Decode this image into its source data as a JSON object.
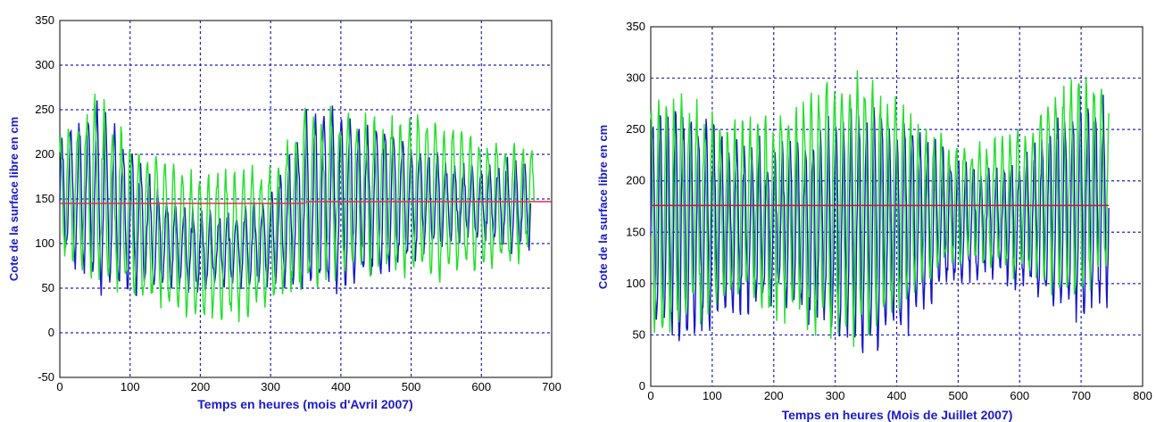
{
  "chart_data": [
    {
      "type": "line",
      "title": "",
      "xlabel": "Temps en heures (mois d'Avril 2007)",
      "ylabel": "Cote de la surface libre en cm",
      "xlim": [
        0,
        700
      ],
      "ylim": [
        -50,
        350
      ],
      "xticks": [
        0,
        100,
        200,
        300,
        400,
        500,
        600,
        700
      ],
      "yticks": [
        -50,
        0,
        50,
        100,
        150,
        200,
        250,
        300,
        350
      ],
      "grid": true,
      "legend": "none",
      "colors": {
        "series1": "#1515c8",
        "series2": "#22e02a",
        "mean": "#e0304a",
        "grid": "#2020c0"
      },
      "series": [
        {
          "x_range": [
            0,
            670
          ],
          "envelope": [
            [
              0,
              95,
              210
            ],
            [
              50,
              60,
              250
            ],
            [
              100,
              45,
              205
            ],
            [
              150,
              45,
              160
            ],
            [
              200,
              35,
              145
            ],
            [
              250,
              40,
              145
            ],
            [
              300,
              50,
              160
            ],
            [
              350,
              50,
              240
            ],
            [
              400,
              55,
              245
            ],
            [
              450,
              65,
              230
            ],
            [
              500,
              75,
              225
            ],
            [
              550,
              85,
              205
            ],
            [
              600,
              90,
              200
            ],
            [
              650,
              85,
              200
            ],
            [
              670,
              95,
              210
            ]
          ]
        },
        {
          "x_range": [
            0,
            675
          ],
          "envelope": [
            [
              0,
              80,
              230
            ],
            [
              50,
              20,
              300
            ],
            [
              100,
              30,
              225
            ],
            [
              150,
              25,
              195
            ],
            [
              200,
              15,
              175
            ],
            [
              250,
              20,
              175
            ],
            [
              300,
              30,
              190
            ],
            [
              350,
              30,
              270
            ],
            [
              400,
              40,
              275
            ],
            [
              450,
              55,
              250
            ],
            [
              500,
              60,
              245
            ],
            [
              550,
              70,
              225
            ],
            [
              600,
              75,
              215
            ],
            [
              650,
              75,
              215
            ],
            [
              675,
              90,
              225
            ]
          ]
        },
        {
          "x": [
            0,
            350
          ],
          "y": [
            145,
            145
          ]
        },
        {
          "x": [
            350,
            700
          ],
          "y": [
            147,
            147
          ]
        }
      ]
    },
    {
      "type": "line",
      "title": "",
      "xlabel": "Temps en heures (Mois de Juillet 2007)",
      "ylabel": "Cote de la surface libre en cm",
      "xlim": [
        0,
        800
      ],
      "ylim": [
        0,
        350
      ],
      "xticks": [
        0,
        100,
        200,
        300,
        400,
        500,
        600,
        700,
        800
      ],
      "yticks": [
        0,
        50,
        100,
        150,
        200,
        250,
        300,
        350
      ],
      "grid": true,
      "legend": "none",
      "colors": {
        "series1": "#1515c8",
        "series2": "#22e02a",
        "mean": "#c02040",
        "grid": "#2020c0"
      },
      "series": [
        {
          "x_range": [
            0,
            745
          ],
          "envelope": [
            [
              0,
              55,
              255
            ],
            [
              100,
              55,
              260
            ],
            [
              200,
              55,
              255
            ],
            [
              300,
              45,
              265
            ],
            [
              400,
              50,
              260
            ],
            [
              500,
              90,
              235
            ],
            [
              600,
              85,
              235
            ],
            [
              700,
              75,
              275
            ],
            [
              745,
              85,
              270
            ]
          ]
        },
        {
          "x_range": [
            0,
            745
          ],
          "envelope": [
            [
              0,
              55,
              275
            ],
            [
              100,
              50,
              285
            ],
            [
              200,
              55,
              275
            ],
            [
              300,
              55,
              295
            ],
            [
              400,
              60,
              285
            ],
            [
              500,
              105,
              250
            ],
            [
              600,
              105,
              250
            ],
            [
              700,
              95,
              300
            ],
            [
              745,
              110,
              290
            ]
          ]
        },
        {
          "x": [
            0,
            745
          ],
          "y": [
            176,
            176
          ]
        }
      ]
    }
  ]
}
